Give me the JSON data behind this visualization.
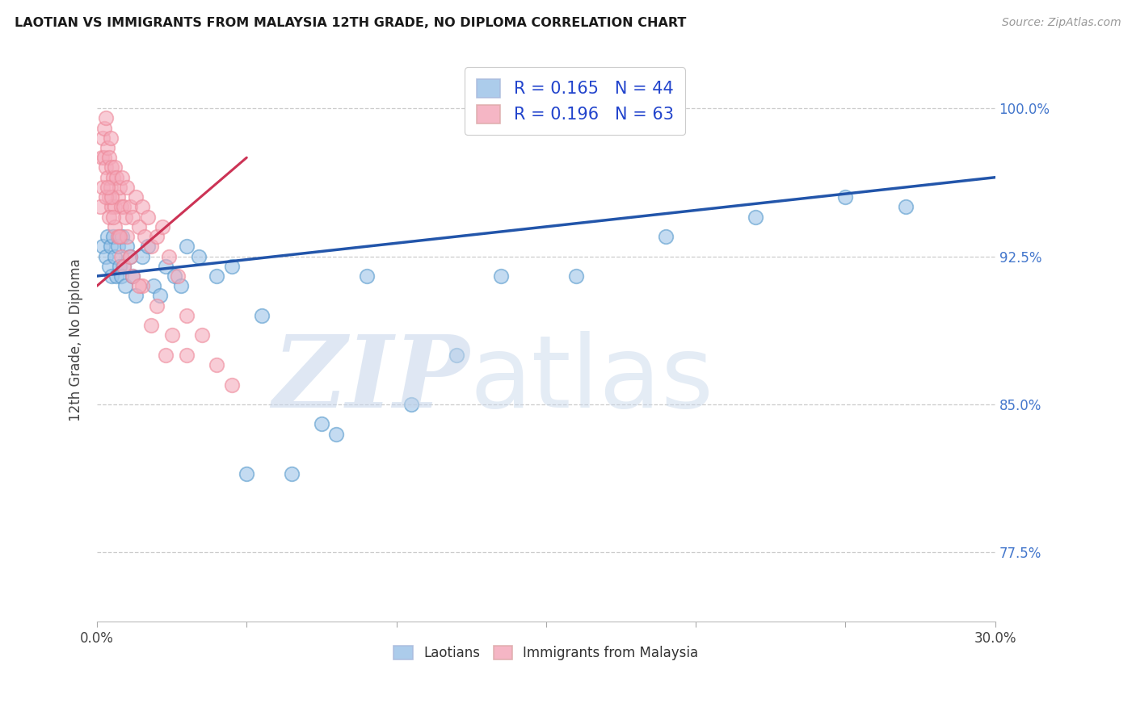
{
  "title": "LAOTIAN VS IMMIGRANTS FROM MALAYSIA 12TH GRADE, NO DIPLOMA CORRELATION CHART",
  "source": "Source: ZipAtlas.com",
  "ylabel": "12th Grade, No Diploma",
  "right_yticks": [
    77.5,
    85.0,
    92.5,
    100.0
  ],
  "right_yticklabels": [
    "77.5%",
    "85.0%",
    "92.5%",
    "100.0%"
  ],
  "xtick_labels": [
    "0.0%",
    "",
    "",
    "",
    "",
    "",
    "30.0%"
  ],
  "xlim": [
    0.0,
    30.0
  ],
  "ylim": [
    74.0,
    102.5
  ],
  "blue_R": "0.165",
  "blue_N": "44",
  "pink_R": "0.196",
  "pink_N": "63",
  "blue_color": "#9EC4E8",
  "pink_color": "#F4AABB",
  "blue_edge_color": "#5599CC",
  "pink_edge_color": "#EE8899",
  "blue_trend_color": "#2255AA",
  "pink_trend_color": "#CC3355",
  "grid_color": "#CCCCCC",
  "title_color": "#1A1A1A",
  "source_color": "#999999",
  "axis_label_color": "#444444",
  "right_tick_color": "#4477CC",
  "legend_text_color": "#2244CC",
  "blue_trend_x": [
    0.0,
    30.0
  ],
  "blue_trend_y": [
    91.5,
    96.5
  ],
  "pink_trend_x": [
    0.0,
    5.0
  ],
  "pink_trend_y": [
    91.0,
    97.5
  ],
  "blue_x": [
    0.2,
    0.3,
    0.35,
    0.4,
    0.45,
    0.5,
    0.55,
    0.6,
    0.65,
    0.7,
    0.75,
    0.8,
    0.85,
    0.9,
    0.95,
    1.0,
    1.1,
    1.2,
    1.3,
    1.5,
    1.7,
    1.9,
    2.1,
    2.3,
    2.6,
    3.0,
    3.4,
    4.0,
    4.5,
    5.5,
    6.5,
    7.5,
    9.0,
    10.5,
    12.0,
    13.5,
    16.0,
    19.0,
    22.0,
    25.0,
    27.0,
    5.0,
    2.8,
    8.0
  ],
  "blue_y": [
    93.0,
    92.5,
    93.5,
    92.0,
    93.0,
    91.5,
    93.5,
    92.5,
    91.5,
    93.0,
    92.0,
    91.5,
    93.5,
    92.0,
    91.0,
    93.0,
    92.5,
    91.5,
    90.5,
    92.5,
    93.0,
    91.0,
    90.5,
    92.0,
    91.5,
    93.0,
    92.5,
    91.5,
    92.0,
    89.5,
    81.5,
    84.0,
    91.5,
    85.0,
    87.5,
    91.5,
    91.5,
    93.5,
    94.5,
    95.5,
    95.0,
    81.5,
    91.0,
    83.5
  ],
  "pink_x": [
    0.1,
    0.15,
    0.2,
    0.2,
    0.25,
    0.25,
    0.3,
    0.3,
    0.35,
    0.35,
    0.4,
    0.4,
    0.45,
    0.45,
    0.5,
    0.5,
    0.55,
    0.6,
    0.6,
    0.65,
    0.7,
    0.75,
    0.8,
    0.85,
    0.9,
    0.95,
    1.0,
    1.1,
    1.2,
    1.3,
    1.4,
    1.5,
    1.6,
    1.7,
    1.8,
    2.0,
    2.2,
    2.4,
    2.7,
    3.0,
    3.5,
    4.0,
    4.5,
    0.3,
    0.4,
    0.5,
    0.6,
    0.7,
    0.8,
    1.0,
    1.2,
    1.5,
    2.0,
    2.5,
    3.0,
    0.35,
    0.55,
    0.75,
    0.9,
    1.1,
    1.4,
    1.8,
    2.3
  ],
  "pink_y": [
    95.0,
    97.5,
    98.5,
    96.0,
    99.0,
    97.5,
    99.5,
    97.0,
    98.0,
    96.5,
    97.5,
    95.5,
    98.5,
    96.0,
    97.0,
    95.0,
    96.5,
    97.0,
    95.0,
    96.5,
    95.5,
    96.0,
    95.0,
    96.5,
    95.0,
    94.5,
    96.0,
    95.0,
    94.5,
    95.5,
    94.0,
    95.0,
    93.5,
    94.5,
    93.0,
    93.5,
    94.0,
    92.5,
    91.5,
    89.5,
    88.5,
    87.0,
    86.0,
    95.5,
    94.5,
    95.5,
    94.0,
    93.5,
    92.5,
    93.5,
    91.5,
    91.0,
    90.0,
    88.5,
    87.5,
    96.0,
    94.5,
    93.5,
    92.0,
    92.5,
    91.0,
    89.0,
    87.5
  ]
}
